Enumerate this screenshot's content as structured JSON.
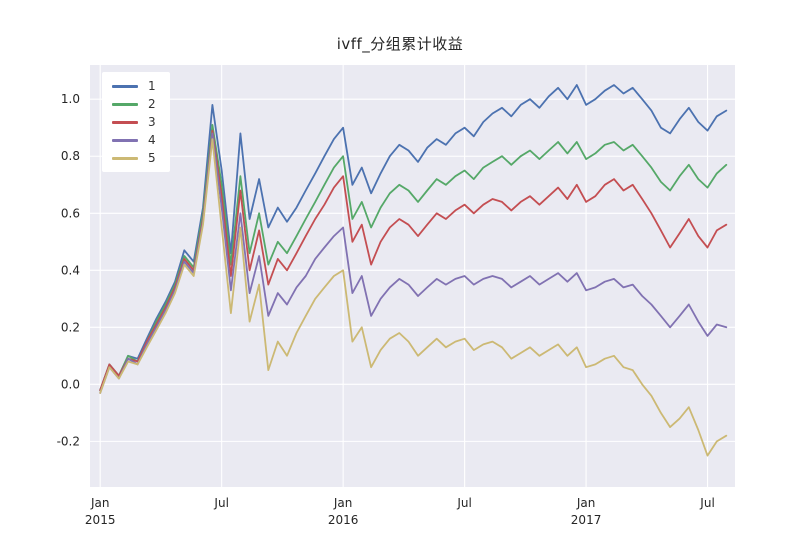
{
  "figure": {
    "title": "ivff_分组累计收益",
    "plot_bg": "#eaeaf2",
    "grid_color": "#ffffff",
    "tick_color": "#262626"
  },
  "chart_data": {
    "type": "line",
    "title": "ivff_分组累计收益",
    "xlabel": "",
    "ylabel": "",
    "legend_position": "upper-left",
    "grid": true,
    "plot_bg": "#eaeaf2",
    "xlim": [
      2014.958,
      2017.613
    ],
    "ylim": [
      -0.36,
      1.12
    ],
    "y_ticks": [
      -0.2,
      0.0,
      0.2,
      0.4,
      0.6,
      0.8,
      1.0
    ],
    "x_ticks": [
      {
        "label": "Jan",
        "year": "2015",
        "x": 2015.0
      },
      {
        "label": "Jul",
        "year": "",
        "x": 2015.5
      },
      {
        "label": "Jan",
        "year": "2016",
        "x": 2016.0
      },
      {
        "label": "Jul",
        "year": "",
        "x": 2016.5
      },
      {
        "label": "Jan",
        "year": "2017",
        "x": 2017.0
      },
      {
        "label": "Jul",
        "year": "",
        "x": 2017.5
      }
    ],
    "x": [
      2015.0,
      2015.038,
      2015.077,
      2015.115,
      2015.154,
      2015.192,
      2015.231,
      2015.269,
      2015.308,
      2015.346,
      2015.385,
      2015.423,
      2015.462,
      2015.5,
      2015.538,
      2015.577,
      2015.615,
      2015.654,
      2015.692,
      2015.731,
      2015.769,
      2015.808,
      2015.846,
      2015.885,
      2015.923,
      2015.962,
      2016.0,
      2016.038,
      2016.077,
      2016.115,
      2016.154,
      2016.192,
      2016.231,
      2016.269,
      2016.308,
      2016.346,
      2016.385,
      2016.423,
      2016.462,
      2016.5,
      2016.538,
      2016.577,
      2016.615,
      2016.654,
      2016.692,
      2016.731,
      2016.769,
      2016.808,
      2016.846,
      2016.885,
      2016.923,
      2016.962,
      2017.0,
      2017.038,
      2017.077,
      2017.115,
      2017.154,
      2017.192,
      2017.231,
      2017.269,
      2017.308,
      2017.346,
      2017.385,
      2017.423,
      2017.462,
      2017.5,
      2017.538,
      2017.577
    ],
    "series": [
      {
        "name": "1",
        "color": "#4c72b0",
        "values": [
          -0.02,
          0.07,
          0.03,
          0.1,
          0.09,
          0.16,
          0.23,
          0.29,
          0.36,
          0.47,
          0.43,
          0.62,
          0.98,
          0.75,
          0.46,
          0.88,
          0.58,
          0.72,
          0.55,
          0.62,
          0.57,
          0.62,
          0.68,
          0.74,
          0.8,
          0.86,
          0.9,
          0.7,
          0.76,
          0.67,
          0.74,
          0.8,
          0.84,
          0.82,
          0.78,
          0.83,
          0.86,
          0.84,
          0.88,
          0.9,
          0.87,
          0.92,
          0.95,
          0.97,
          0.94,
          0.98,
          1.0,
          0.97,
          1.01,
          1.04,
          1.0,
          1.05,
          0.98,
          1.0,
          1.03,
          1.05,
          1.02,
          1.04,
          1.0,
          0.96,
          0.9,
          0.88,
          0.93,
          0.97,
          0.92,
          0.89,
          0.94,
          0.96
        ]
      },
      {
        "name": "2",
        "color": "#55a868",
        "values": [
          -0.02,
          0.07,
          0.03,
          0.1,
          0.08,
          0.15,
          0.22,
          0.28,
          0.35,
          0.45,
          0.41,
          0.6,
          0.91,
          0.7,
          0.42,
          0.73,
          0.46,
          0.6,
          0.42,
          0.5,
          0.46,
          0.52,
          0.58,
          0.64,
          0.7,
          0.76,
          0.8,
          0.58,
          0.64,
          0.55,
          0.62,
          0.67,
          0.7,
          0.68,
          0.64,
          0.68,
          0.72,
          0.7,
          0.73,
          0.75,
          0.72,
          0.76,
          0.78,
          0.8,
          0.77,
          0.8,
          0.82,
          0.79,
          0.82,
          0.85,
          0.81,
          0.85,
          0.79,
          0.81,
          0.84,
          0.85,
          0.82,
          0.84,
          0.8,
          0.76,
          0.71,
          0.68,
          0.73,
          0.77,
          0.72,
          0.69,
          0.74,
          0.77
        ]
      },
      {
        "name": "3",
        "color": "#c44e52",
        "values": [
          -0.02,
          0.07,
          0.03,
          0.09,
          0.08,
          0.15,
          0.21,
          0.27,
          0.34,
          0.44,
          0.4,
          0.58,
          0.89,
          0.66,
          0.38,
          0.68,
          0.4,
          0.54,
          0.35,
          0.44,
          0.4,
          0.46,
          0.52,
          0.58,
          0.63,
          0.69,
          0.73,
          0.5,
          0.56,
          0.42,
          0.5,
          0.55,
          0.58,
          0.56,
          0.52,
          0.56,
          0.6,
          0.58,
          0.61,
          0.63,
          0.6,
          0.63,
          0.65,
          0.64,
          0.61,
          0.64,
          0.66,
          0.63,
          0.66,
          0.69,
          0.65,
          0.7,
          0.64,
          0.66,
          0.7,
          0.72,
          0.68,
          0.7,
          0.65,
          0.6,
          0.54,
          0.48,
          0.53,
          0.58,
          0.52,
          0.48,
          0.54,
          0.56
        ]
      },
      {
        "name": "4",
        "color": "#8172b2",
        "values": [
          -0.03,
          0.06,
          0.02,
          0.09,
          0.07,
          0.14,
          0.2,
          0.26,
          0.33,
          0.43,
          0.39,
          0.57,
          0.88,
          0.62,
          0.33,
          0.6,
          0.32,
          0.45,
          0.24,
          0.32,
          0.28,
          0.34,
          0.38,
          0.44,
          0.48,
          0.52,
          0.55,
          0.32,
          0.38,
          0.24,
          0.3,
          0.34,
          0.37,
          0.35,
          0.31,
          0.34,
          0.37,
          0.35,
          0.37,
          0.38,
          0.35,
          0.37,
          0.38,
          0.37,
          0.34,
          0.36,
          0.38,
          0.35,
          0.37,
          0.39,
          0.36,
          0.39,
          0.33,
          0.34,
          0.36,
          0.37,
          0.34,
          0.35,
          0.31,
          0.28,
          0.24,
          0.2,
          0.24,
          0.28,
          0.22,
          0.17,
          0.21,
          0.2
        ]
      },
      {
        "name": "5",
        "color": "#ccb974",
        "values": [
          -0.03,
          0.06,
          0.02,
          0.08,
          0.07,
          0.13,
          0.19,
          0.25,
          0.32,
          0.42,
          0.38,
          0.56,
          0.86,
          0.55,
          0.25,
          0.55,
          0.22,
          0.35,
          0.05,
          0.15,
          0.1,
          0.18,
          0.24,
          0.3,
          0.34,
          0.38,
          0.4,
          0.15,
          0.2,
          0.06,
          0.12,
          0.16,
          0.18,
          0.15,
          0.1,
          0.13,
          0.16,
          0.13,
          0.15,
          0.16,
          0.12,
          0.14,
          0.15,
          0.13,
          0.09,
          0.11,
          0.13,
          0.1,
          0.12,
          0.14,
          0.1,
          0.13,
          0.06,
          0.07,
          0.09,
          0.1,
          0.06,
          0.05,
          0.0,
          -0.04,
          -0.1,
          -0.15,
          -0.12,
          -0.08,
          -0.16,
          -0.25,
          -0.2,
          -0.18
        ]
      }
    ]
  }
}
